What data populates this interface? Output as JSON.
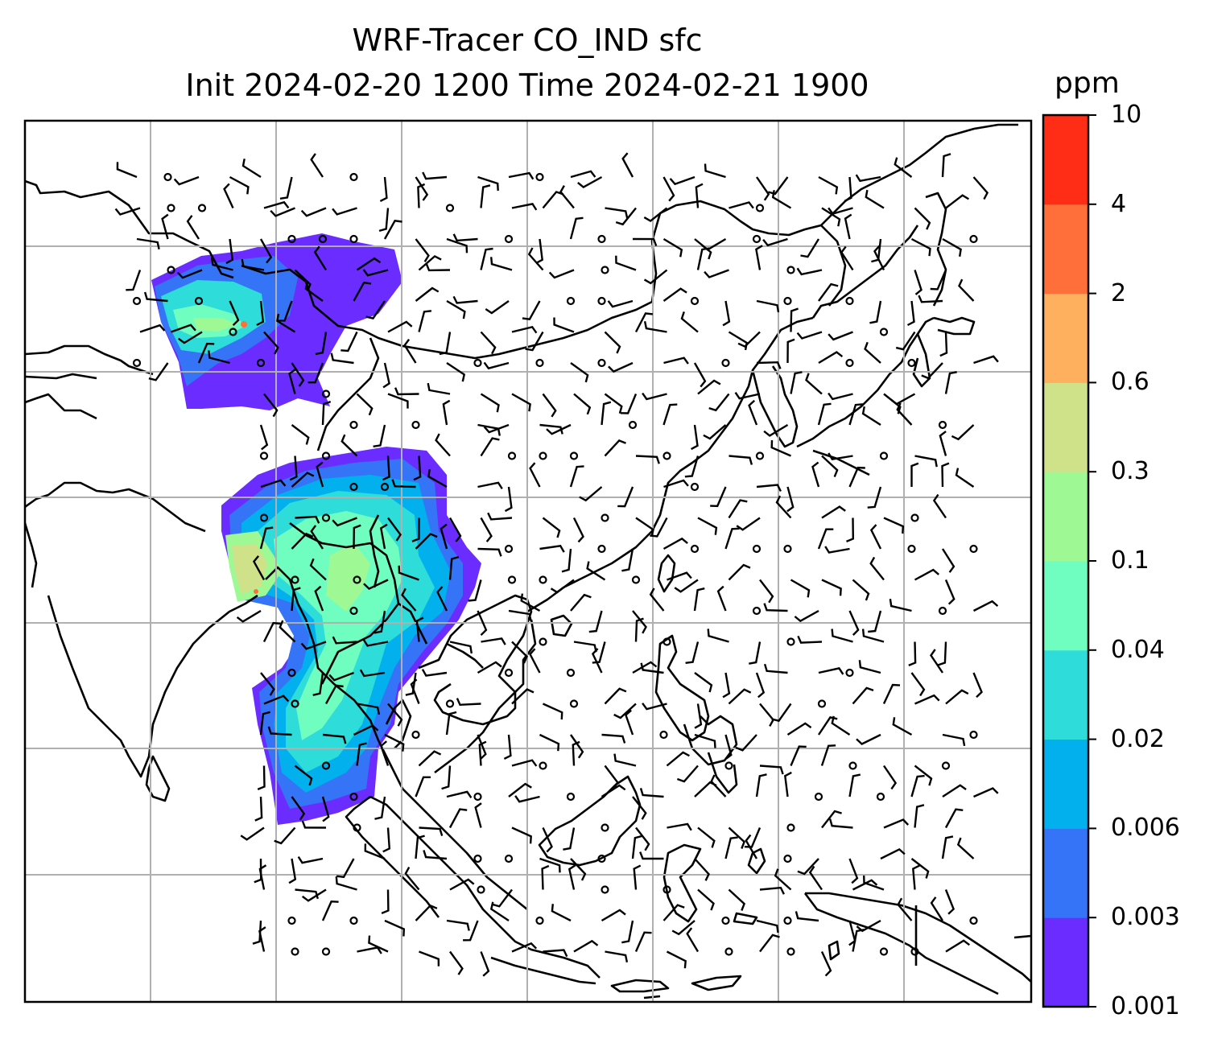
{
  "title": {
    "line1": "WRF-Tracer CO_IND sfc",
    "line2": "Init 2024-02-20 1200 Time 2024-02-21 1900"
  },
  "colorbar": {
    "unit": "ppm",
    "levels": [
      "0.001",
      "0.003",
      "0.006",
      "0.02",
      "0.04",
      "0.1",
      "0.3",
      "0.6",
      "2",
      "4",
      "10"
    ],
    "colors": [
      "#6a2cff",
      "#3574f6",
      "#02b0ed",
      "#2edcd9",
      "#6ffdc0",
      "#9ef995",
      "#cfe289",
      "#ffb05f",
      "#ff6f3a",
      "#ff2d15"
    ]
  },
  "map": {
    "grid": "on",
    "gridline_color": "#b0b0b0",
    "coastline_color": "#000000",
    "wind_symbols": "barbs",
    "calm_symbol": "circle"
  }
}
